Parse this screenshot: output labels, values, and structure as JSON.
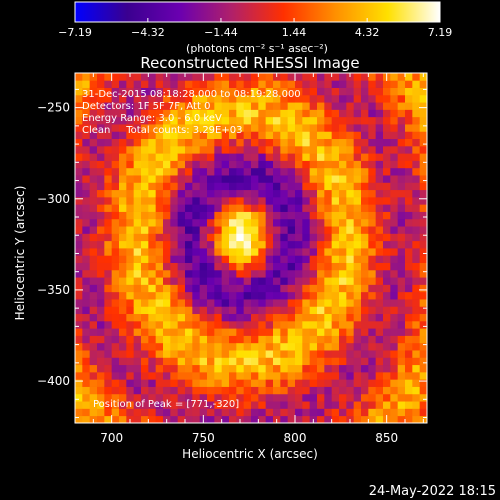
{
  "chart_data": {
    "type": "heatmap",
    "title": "Reconstructed RHESSI Image",
    "xlabel": "Heliocentric X (arcsec)",
    "ylabel": "Heliocentric Y (arcsec)",
    "xlim": [
      680,
      872
    ],
    "ylim": [
      -423,
      -231
    ],
    "x_ticks": [
      700,
      750,
      800,
      850
    ],
    "y_ticks": [
      -250,
      -300,
      -350,
      -400
    ],
    "colorbar": {
      "min": -7.19,
      "max": 7.19,
      "tick_values": [
        -7.19,
        -4.32,
        -1.44,
        1.44,
        4.32,
        7.19
      ],
      "tick_labels": [
        "−7.19",
        "−4.32",
        "−1.44",
        "1.44",
        "4.32",
        "7.19"
      ],
      "unit_text": "(photons cm⁻² s⁻¹ asec⁻²)",
      "colors": [
        "#0000ff",
        "#3a0090",
        "#6a00b0",
        "#b0206a",
        "#ff3000",
        "#ff9000",
        "#ffe000",
        "#ffffff"
      ]
    },
    "annotations": [
      "31-Dec-2015 08:18:28.000 to 08:19:28.000",
      "Detectors: 1F 5F 7F, Att 0",
      "Energy Range: 3.0 - 6.0 keV",
      "Clean     Total counts: 3.29E+03"
    ],
    "peak_text": "Position of Peak = [771,-320]",
    "peak": {
      "x": 771,
      "y": -320,
      "value": 7.19
    },
    "rings": [
      {
        "radius_arcsec": 0,
        "value": 7.19
      },
      {
        "radius_arcsec": 30,
        "value": -3.5
      },
      {
        "radius_arcsec": 62,
        "value": 4.3
      },
      {
        "radius_arcsec": 95,
        "value": -1.0
      },
      {
        "radius_arcsec": 128,
        "value": 3.6
      }
    ],
    "pixel_size_arcsec": 4
  },
  "footer": {
    "timestamp": "24-May-2022 18:15"
  }
}
